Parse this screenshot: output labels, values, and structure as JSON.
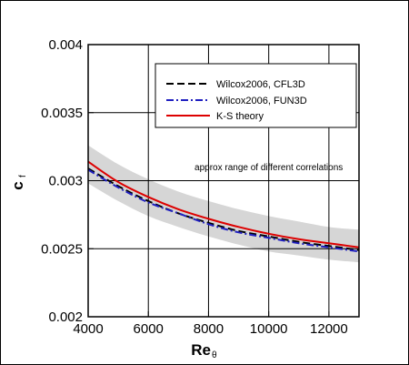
{
  "chart_data": {
    "type": "line",
    "title": "",
    "xlabel": "Re",
    "xlabel_sub": "θ",
    "ylabel": "c",
    "ylabel_sub": "f",
    "xlim": [
      4000,
      13000
    ],
    "ylim": [
      0.002,
      0.004
    ],
    "xticks": [
      4000,
      6000,
      8000,
      10000,
      12000
    ],
    "xtick_labels": [
      "4000",
      "6000",
      "8000",
      "10000",
      "12000"
    ],
    "yticks": [
      0.002,
      0.0025,
      0.003,
      0.0035,
      0.004
    ],
    "ytick_labels": [
      "0.002",
      "0.0025",
      "0.003",
      "0.0035",
      "0.004"
    ],
    "grid": true,
    "legend_position": "top-right",
    "x": [
      4000,
      5000,
      6000,
      7000,
      8000,
      9000,
      10000,
      11000,
      12000,
      13000
    ],
    "series": [
      {
        "name": "Wilcox2006, CFL3D",
        "color": "#000000",
        "dash": "dashed",
        "values": [
          0.00309,
          0.00296,
          0.00285,
          0.00276,
          0.00269,
          0.00263,
          0.00259,
          0.00255,
          0.00252,
          0.00249
        ]
      },
      {
        "name": "Wilcox2006, FUN3D",
        "color": "#2020c0",
        "dash": "dashdot",
        "values": [
          0.00308,
          0.00295,
          0.00284,
          0.00276,
          0.00268,
          0.00262,
          0.00258,
          0.00254,
          0.00251,
          0.00248
        ]
      },
      {
        "name": "K-S theory",
        "color": "#dd0000",
        "dash": "solid",
        "values": [
          0.00314,
          0.00299,
          0.00288,
          0.00279,
          0.00272,
          0.00266,
          0.00261,
          0.00257,
          0.00254,
          0.00251
        ]
      }
    ],
    "band": {
      "lower": [
        0.00298,
        0.00285,
        0.00274,
        0.00266,
        0.00259,
        0.00253,
        0.00248,
        0.00245,
        0.00242,
        0.0024
      ],
      "upper": [
        0.00326,
        0.00312,
        0.00301,
        0.00292,
        0.00285,
        0.00279,
        0.00274,
        0.0027,
        0.00266,
        0.00264
      ],
      "color": "#d6d6d6"
    },
    "annotation": "approx range of different correlations",
    "annotation_at": [
      10000,
      0.00297
    ]
  }
}
